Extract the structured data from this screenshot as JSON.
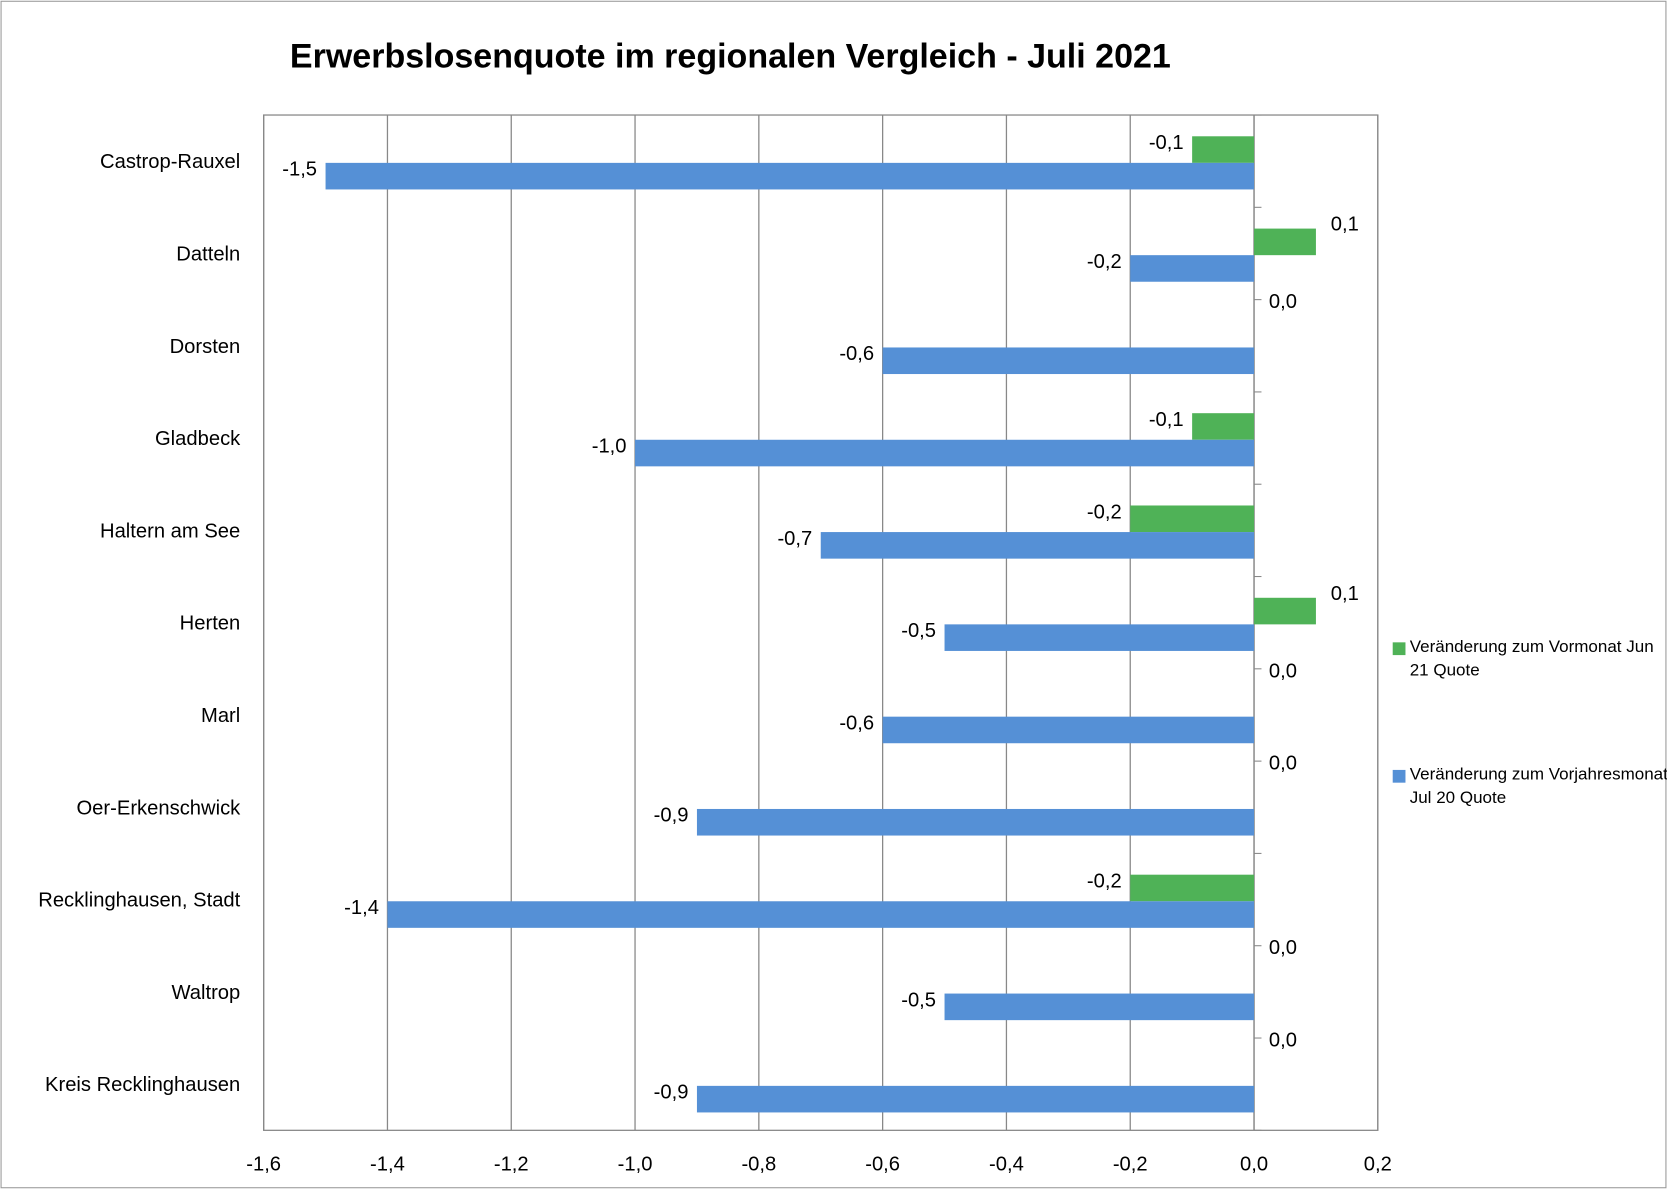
{
  "chart_data": {
    "type": "hbar",
    "title": "Erwerbslosenquote im regionalen Vergleich - Juli 2021",
    "categories": [
      "Castrop-Rauxel",
      "Datteln",
      "Dorsten",
      "Gladbeck",
      "Haltern am See",
      "Herten",
      "Marl",
      "Oer-Erkenschwick",
      "Recklinghausen, Stadt",
      "Waltrop",
      "Kreis Recklinghausen"
    ],
    "series": [
      {
        "name": "Veränderung  zum Vormonat Jun 21 Quote",
        "color": "#4fb257",
        "values": [
          -0.1,
          0.1,
          0,
          -0.1,
          -0.2,
          0.1,
          0,
          0,
          -0.2,
          0,
          0
        ],
        "value_labels": [
          "-0,1",
          "0,1",
          "0,0",
          "-0,1",
          "-0,2",
          "0,1",
          "0,0",
          "0,0",
          "-0,2",
          "0,0",
          "0,0"
        ]
      },
      {
        "name": "Veränderung  zum Vorjahresmonat Jul 20 Quote",
        "color": "#5590d6",
        "values": [
          -1.5,
          -0.2,
          -0.6,
          -1.0,
          -0.7,
          -0.5,
          -0.6,
          -0.9,
          -1.4,
          -0.5,
          -0.9
        ],
        "value_labels": [
          "-1,5",
          "-0,2",
          "-0,6",
          "-1,0",
          "-0,7",
          "-0,5",
          "-0,6",
          "-0,9",
          "-1,4",
          "-0,5",
          "-0,9"
        ]
      }
    ],
    "xlim": [
      -1.6,
      0.2
    ],
    "xticks": [
      {
        "value": -1.6,
        "label": "-1,6"
      },
      {
        "value": -1.4,
        "label": "-1,4"
      },
      {
        "value": -1.2,
        "label": "-1,2"
      },
      {
        "value": -1.0,
        "label": "-1,0"
      },
      {
        "value": -0.8,
        "label": "-0,8"
      },
      {
        "value": -0.6,
        "label": "-0,6"
      },
      {
        "value": -0.4,
        "label": "-0,4"
      },
      {
        "value": -0.2,
        "label": "-0,2"
      },
      {
        "value": 0,
        "label": "0,0"
      },
      {
        "value": 0.2,
        "label": "0,2"
      }
    ],
    "grid": true,
    "legend": "right"
  }
}
